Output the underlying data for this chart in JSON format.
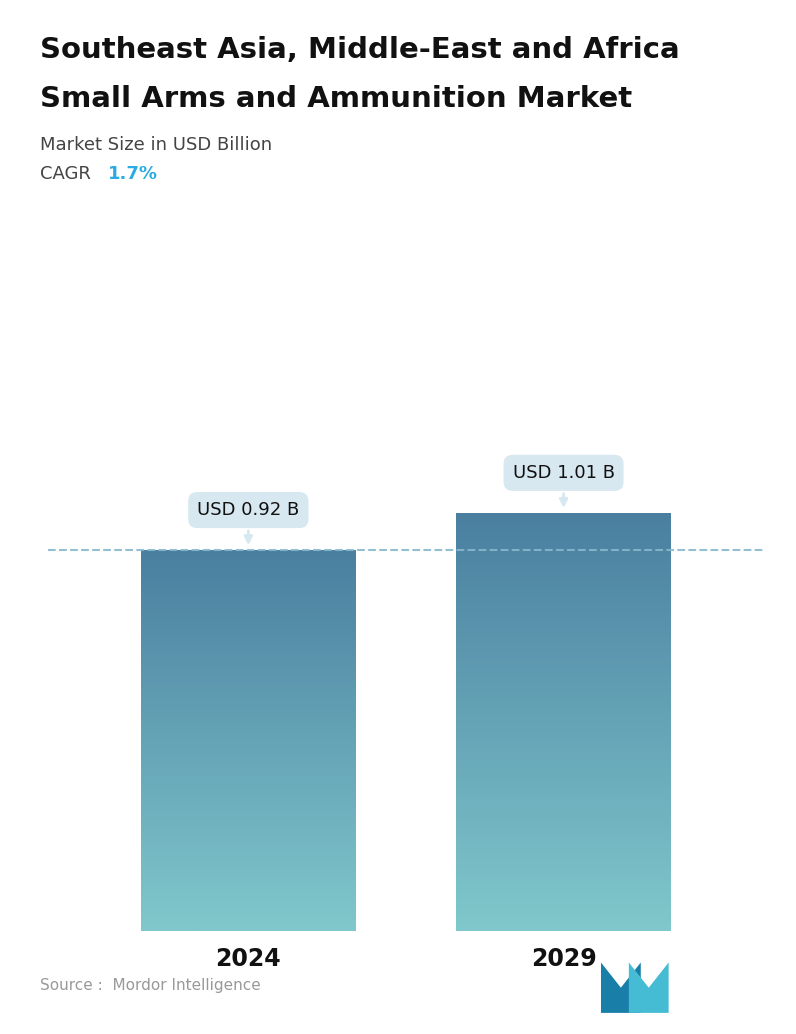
{
  "title_line1": "Southeast Asia, Middle-East and Africa",
  "title_line2": "Small Arms and Ammunition Market",
  "subtitle": "Market Size in USD Billion",
  "cagr_label": "CAGR",
  "cagr_value": "1.7%",
  "cagr_color": "#2aace2",
  "categories": [
    "2024",
    "2029"
  ],
  "values": [
    0.92,
    1.01
  ],
  "bar_labels": [
    "USD 0.92 B",
    "USD 1.01 B"
  ],
  "bar_color_top": "#4a7fa0",
  "bar_color_bottom": "#80c8cc",
  "dashed_line_color": "#88b8cc",
  "source_text": "Source :  Mordor Intelligence",
  "source_color": "#999999",
  "background_color": "#ffffff",
  "title_color": "#111111",
  "subtitle_color": "#444444",
  "tick_label_color": "#111111",
  "annotation_bg_color": "#d8e8f0",
  "annotation_text_color": "#111111",
  "ylim": [
    0,
    1.25
  ],
  "x_positions": [
    0.28,
    0.72
  ],
  "bar_width": 0.3
}
